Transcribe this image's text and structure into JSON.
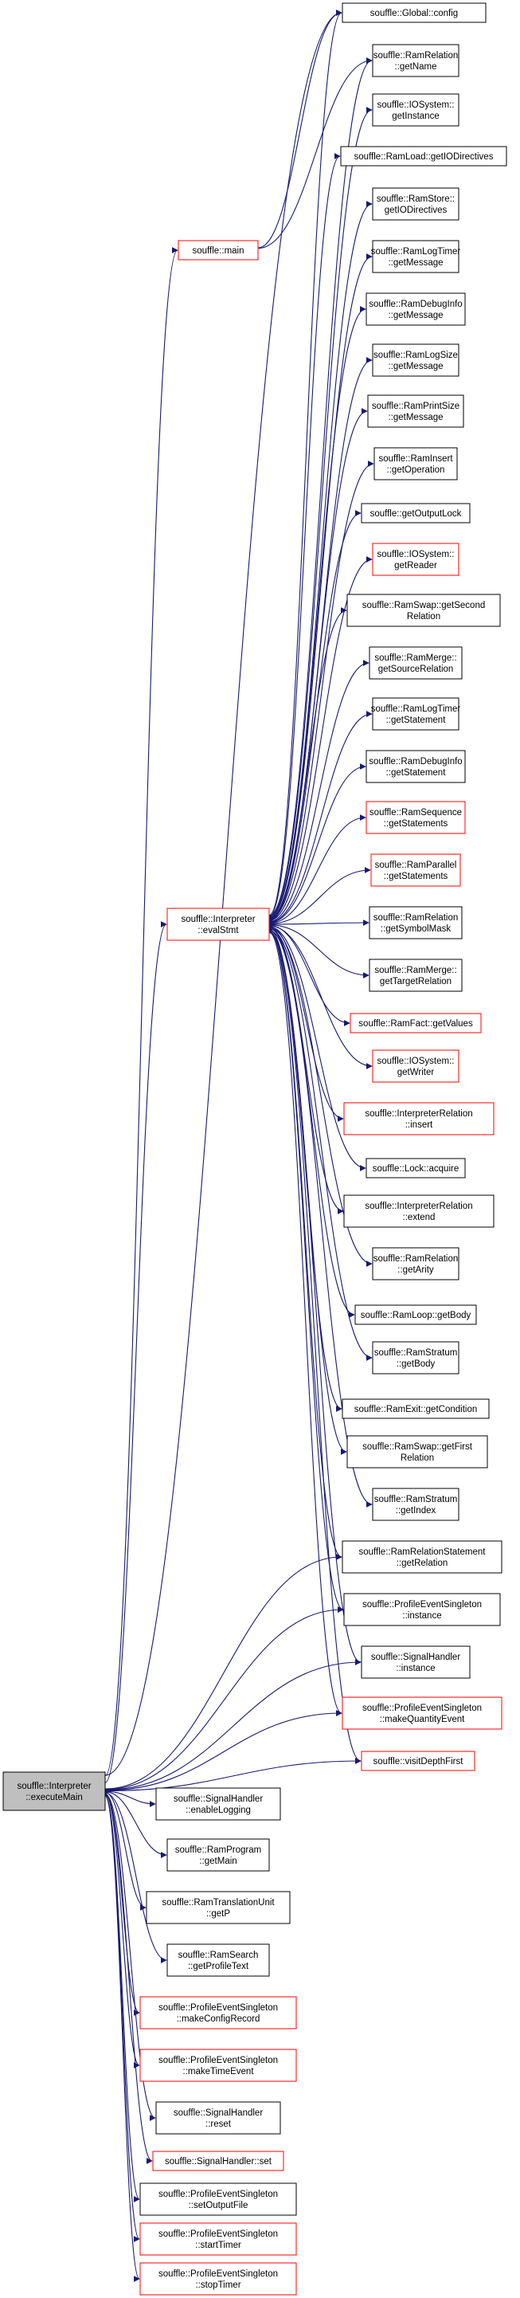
{
  "colors": {
    "edge": "#191970",
    "border_normal": "#000000",
    "border_truncated": "#ff0000",
    "root_fill": "#bfbfbf",
    "node_fill": "#ffffff"
  },
  "root": {
    "id": "executeMain",
    "lines": [
      "souffle::Interpreter",
      "::executeMain"
    ]
  },
  "nodes": [
    {
      "id": "config",
      "lines": [
        "souffle::Global::config"
      ],
      "truncated": false
    },
    {
      "id": "getName",
      "lines": [
        "souffle::RamRelation",
        "::getName"
      ],
      "truncated": false
    },
    {
      "id": "getInstanceIO",
      "lines": [
        "souffle::IOSystem::",
        "getInstance"
      ],
      "truncated": false
    },
    {
      "id": "loadGetIO",
      "lines": [
        "souffle::RamLoad::getIODirectives"
      ],
      "truncated": false
    },
    {
      "id": "storeGetIO",
      "lines": [
        "souffle::RamStore::",
        "getIODirectives"
      ],
      "truncated": false
    },
    {
      "id": "logTimerMsg",
      "lines": [
        "souffle::RamLogTimer",
        "::getMessage"
      ],
      "truncated": false
    },
    {
      "id": "debugInfoMsg",
      "lines": [
        "souffle::RamDebugInfo",
        "::getMessage"
      ],
      "truncated": false
    },
    {
      "id": "logSizeMsg",
      "lines": [
        "souffle::RamLogSize",
        "::getMessage"
      ],
      "truncated": false
    },
    {
      "id": "printSizeMsg",
      "lines": [
        "souffle::RamPrintSize",
        "::getMessage"
      ],
      "truncated": false
    },
    {
      "id": "insertOp",
      "lines": [
        "souffle::RamInsert",
        "::getOperation"
      ],
      "truncated": false
    },
    {
      "id": "outputLock",
      "lines": [
        "souffle::getOutputLock"
      ],
      "truncated": false
    },
    {
      "id": "getReader",
      "lines": [
        "souffle::IOSystem::",
        "getReader"
      ],
      "truncated": true
    },
    {
      "id": "swapSecond",
      "lines": [
        "souffle::RamSwap::getSecond",
        "Relation"
      ],
      "truncated": false
    },
    {
      "id": "mergeSource",
      "lines": [
        "souffle::RamMerge::",
        "getSourceRelation"
      ],
      "truncated": false
    },
    {
      "id": "logTimerStmt",
      "lines": [
        "souffle::RamLogTimer",
        "::getStatement"
      ],
      "truncated": false
    },
    {
      "id": "debugInfoStmt",
      "lines": [
        "souffle::RamDebugInfo",
        "::getStatement"
      ],
      "truncated": false
    },
    {
      "id": "seqStmts",
      "lines": [
        "souffle::RamSequence",
        "::getStatements"
      ],
      "truncated": true
    },
    {
      "id": "parStmts",
      "lines": [
        "souffle::RamParallel",
        "::getStatements"
      ],
      "truncated": true
    },
    {
      "id": "symbolMask",
      "lines": [
        "souffle::RamRelation",
        "::getSymbolMask"
      ],
      "truncated": false
    },
    {
      "id": "mergeTarget",
      "lines": [
        "souffle::RamMerge::",
        "getTargetRelation"
      ],
      "truncated": false
    },
    {
      "id": "factValues",
      "lines": [
        "souffle::RamFact::getValues"
      ],
      "truncated": true
    },
    {
      "id": "getWriter",
      "lines": [
        "souffle::IOSystem::",
        "getWriter"
      ],
      "truncated": true
    },
    {
      "id": "irInsert",
      "lines": [
        "souffle::InterpreterRelation",
        "::insert"
      ],
      "truncated": true
    },
    {
      "id": "lockAcquire",
      "lines": [
        "souffle::Lock::acquire"
      ],
      "truncated": false
    },
    {
      "id": "irExtend",
      "lines": [
        "souffle::InterpreterRelation",
        "::extend"
      ],
      "truncated": false
    },
    {
      "id": "getArity",
      "lines": [
        "souffle::RamRelation",
        "::getArity"
      ],
      "truncated": false
    },
    {
      "id": "loopBody",
      "lines": [
        "souffle::RamLoop::getBody"
      ],
      "truncated": false
    },
    {
      "id": "stratumBody",
      "lines": [
        "souffle::RamStratum",
        "::getBody"
      ],
      "truncated": false
    },
    {
      "id": "exitCond",
      "lines": [
        "souffle::RamExit::getCondition"
      ],
      "truncated": false
    },
    {
      "id": "swapFirst",
      "lines": [
        "souffle::RamSwap::getFirst",
        "Relation"
      ],
      "truncated": false
    },
    {
      "id": "stratumIndex",
      "lines": [
        "souffle::RamStratum",
        "::getIndex"
      ],
      "truncated": false
    },
    {
      "id": "relStmtRel",
      "lines": [
        "souffle::RamRelationStatement",
        "::getRelation"
      ],
      "truncated": false
    },
    {
      "id": "pesInstance",
      "lines": [
        "souffle::ProfileEventSingleton",
        "::instance"
      ],
      "truncated": false
    },
    {
      "id": "shInstance",
      "lines": [
        "souffle::SignalHandler",
        "::instance"
      ],
      "truncated": false
    },
    {
      "id": "makeQuantity",
      "lines": [
        "souffle::ProfileEventSingleton",
        "::makeQuantityEvent"
      ],
      "truncated": true
    },
    {
      "id": "visitDepth",
      "lines": [
        "souffle::visitDepthFirst"
      ],
      "truncated": true
    },
    {
      "id": "main",
      "lines": [
        "souffle::main"
      ],
      "truncated": true
    },
    {
      "id": "evalStmt",
      "lines": [
        "souffle::Interpreter",
        "::evalStmt"
      ],
      "truncated": true
    },
    {
      "id": "enableLogging",
      "lines": [
        "souffle::SignalHandler",
        "::enableLogging"
      ],
      "truncated": false
    },
    {
      "id": "getMain",
      "lines": [
        "souffle::RamProgram",
        "::getMain"
      ],
      "truncated": false
    },
    {
      "id": "getP",
      "lines": [
        "souffle::RamTranslationUnit",
        "::getP"
      ],
      "truncated": false
    },
    {
      "id": "profileText",
      "lines": [
        "souffle::RamSearch",
        "::getProfileText"
      ],
      "truncated": false
    },
    {
      "id": "makeConfig",
      "lines": [
        "souffle::ProfileEventSingleton",
        "::makeConfigRecord"
      ],
      "truncated": true
    },
    {
      "id": "makeTime",
      "lines": [
        "souffle::ProfileEventSingleton",
        "::makeTimeEvent"
      ],
      "truncated": true
    },
    {
      "id": "shReset",
      "lines": [
        "souffle::SignalHandler",
        "::reset"
      ],
      "truncated": false
    },
    {
      "id": "shSet",
      "lines": [
        "souffle::SignalHandler::set"
      ],
      "truncated": true
    },
    {
      "id": "setOutputFile",
      "lines": [
        "souffle::ProfileEventSingleton",
        "::setOutputFile"
      ],
      "truncated": false
    },
    {
      "id": "startTimer",
      "lines": [
        "souffle::ProfileEventSingleton",
        "::startTimer"
      ],
      "truncated": true
    },
    {
      "id": "stopTimer",
      "lines": [
        "souffle::ProfileEventSingleton",
        "::stopTimer"
      ],
      "truncated": true
    }
  ],
  "edges": [
    [
      "executeMain",
      "config"
    ],
    [
      "executeMain",
      "main"
    ],
    [
      "executeMain",
      "evalStmt"
    ],
    [
      "executeMain",
      "relStmtRel"
    ],
    [
      "executeMain",
      "pesInstance"
    ],
    [
      "executeMain",
      "shInstance"
    ],
    [
      "executeMain",
      "makeQuantity"
    ],
    [
      "executeMain",
      "visitDepth"
    ],
    [
      "executeMain",
      "enableLogging"
    ],
    [
      "executeMain",
      "getMain"
    ],
    [
      "executeMain",
      "getP"
    ],
    [
      "executeMain",
      "profileText"
    ],
    [
      "executeMain",
      "makeConfig"
    ],
    [
      "executeMain",
      "makeTime"
    ],
    [
      "executeMain",
      "shReset"
    ],
    [
      "executeMain",
      "shSet"
    ],
    [
      "executeMain",
      "setOutputFile"
    ],
    [
      "executeMain",
      "startTimer"
    ],
    [
      "executeMain",
      "stopTimer"
    ],
    [
      "main",
      "config"
    ],
    [
      "main",
      "getName"
    ],
    [
      "evalStmt",
      "config"
    ],
    [
      "evalStmt",
      "getName"
    ],
    [
      "evalStmt",
      "getInstanceIO"
    ],
    [
      "evalStmt",
      "loadGetIO"
    ],
    [
      "evalStmt",
      "storeGetIO"
    ],
    [
      "evalStmt",
      "logTimerMsg"
    ],
    [
      "evalStmt",
      "debugInfoMsg"
    ],
    [
      "evalStmt",
      "logSizeMsg"
    ],
    [
      "evalStmt",
      "printSizeMsg"
    ],
    [
      "evalStmt",
      "insertOp"
    ],
    [
      "evalStmt",
      "outputLock"
    ],
    [
      "evalStmt",
      "getReader"
    ],
    [
      "evalStmt",
      "swapSecond"
    ],
    [
      "evalStmt",
      "mergeSource"
    ],
    [
      "evalStmt",
      "logTimerStmt"
    ],
    [
      "evalStmt",
      "debugInfoStmt"
    ],
    [
      "evalStmt",
      "seqStmts"
    ],
    [
      "evalStmt",
      "parStmts"
    ],
    [
      "evalStmt",
      "symbolMask"
    ],
    [
      "evalStmt",
      "mergeTarget"
    ],
    [
      "evalStmt",
      "factValues"
    ],
    [
      "evalStmt",
      "getWriter"
    ],
    [
      "evalStmt",
      "irInsert"
    ],
    [
      "evalStmt",
      "lockAcquire"
    ],
    [
      "evalStmt",
      "irExtend"
    ],
    [
      "evalStmt",
      "getArity"
    ],
    [
      "evalStmt",
      "loopBody"
    ],
    [
      "evalStmt",
      "stratumBody"
    ],
    [
      "evalStmt",
      "exitCond"
    ],
    [
      "evalStmt",
      "swapFirst"
    ],
    [
      "evalStmt",
      "stratumIndex"
    ],
    [
      "evalStmt",
      "relStmtRel"
    ],
    [
      "evalStmt",
      "pesInstance"
    ],
    [
      "evalStmt",
      "shInstance"
    ],
    [
      "evalStmt",
      "makeQuantity"
    ],
    [
      "evalStmt",
      "visitDepth"
    ]
  ]
}
